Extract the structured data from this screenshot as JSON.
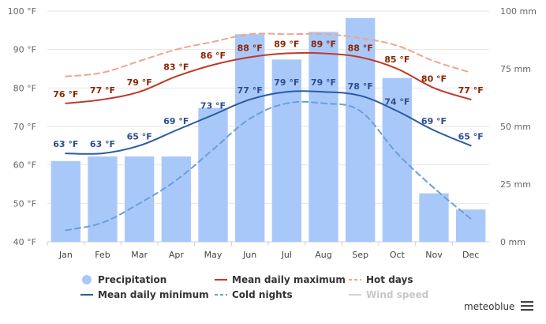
{
  "chart_data": {
    "type": "bar",
    "categories": [
      "Jan",
      "Feb",
      "Mar",
      "Apr",
      "May",
      "Jun",
      "Jul",
      "Aug",
      "Sep",
      "Oct",
      "Nov",
      "Dec"
    ],
    "y_left": {
      "min": 40,
      "max": 100,
      "ticks": [
        40,
        50,
        60,
        70,
        80,
        90,
        100
      ],
      "unit": "°F",
      "tick_labels": [
        "40 °F",
        "50 °F",
        "60 °F",
        "70 °F",
        "80 °F",
        "90 °F",
        "100 °F"
      ]
    },
    "y_right": {
      "min": 0,
      "max": 100,
      "ticks": [
        0,
        25,
        50,
        75,
        100
      ],
      "unit": "mm",
      "tick_labels": [
        "0 mm",
        "25 mm",
        "50 mm",
        "75 mm",
        "100 mm"
      ]
    },
    "grid": true,
    "legend_position": "bottom",
    "series": [
      {
        "name": "Precipitation",
        "kind": "bar",
        "axis": "right",
        "color": "#a9c8fa",
        "values": [
          35,
          37,
          37,
          37,
          58,
          90,
          79,
          91,
          97,
          71,
          21,
          14
        ]
      },
      {
        "name": "Mean daily maximum",
        "kind": "line",
        "axis": "left",
        "color": "#c0392b",
        "values": [
          76,
          77,
          79,
          83,
          86,
          88,
          89,
          89,
          88,
          85,
          80,
          77
        ],
        "labels": [
          "76 °F",
          "77 °F",
          "79 °F",
          "83 °F",
          "86 °F",
          "88 °F",
          "89 °F",
          "89 °F",
          "88 °F",
          "85 °F",
          "80 °F",
          "77 °F"
        ]
      },
      {
        "name": "Hot days",
        "kind": "line",
        "dash": true,
        "axis": "left",
        "color": "#f0a48e",
        "values": [
          83,
          84,
          87,
          90,
          92,
          94,
          94,
          94,
          93,
          91,
          87,
          84
        ]
      },
      {
        "name": "Mean daily minimum",
        "kind": "line",
        "axis": "left",
        "color": "#2c5aa0",
        "values": [
          63,
          63,
          65,
          69,
          73,
          77,
          79,
          79,
          78,
          74,
          69,
          65
        ],
        "labels": [
          "63 °F",
          "63 °F",
          "65 °F",
          "69 °F",
          "73 °F",
          "77 °F",
          "79 °F",
          "79 °F",
          "78 °F",
          "74 °F",
          "69 °F",
          "65 °F"
        ]
      },
      {
        "name": "Cold nights",
        "kind": "line",
        "dash": true,
        "axis": "left",
        "color": "#6a9fd8",
        "values": [
          43,
          45,
          50,
          56,
          64,
          72,
          76,
          76,
          74,
          63,
          54,
          46
        ]
      }
    ],
    "legend": [
      {
        "name": "Precipitation",
        "symbol": "circle",
        "color": "#a9c8fa"
      },
      {
        "name": "Mean daily maximum",
        "symbol": "line",
        "color": "#c0392b"
      },
      {
        "name": "Hot days",
        "symbol": "dash",
        "color": "#f0a48e"
      },
      {
        "name": "Mean daily minimum",
        "symbol": "line",
        "color": "#2c5aa0"
      },
      {
        "name": "Cold nights",
        "symbol": "dash",
        "color": "#6a9fd8"
      },
      {
        "name": "Wind speed",
        "symbol": "line",
        "color": "#d0d0d0",
        "disabled": true
      }
    ]
  },
  "branding": {
    "label": "meteoblue",
    "menu_icon": "hamburger-menu-icon"
  }
}
